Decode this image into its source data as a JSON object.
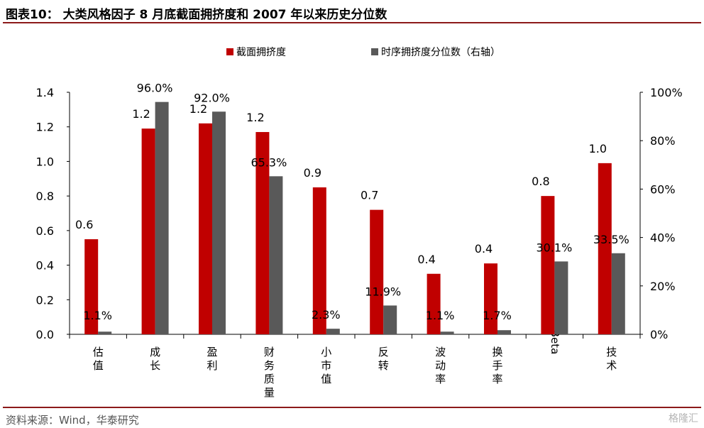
{
  "header": {
    "title": "图表10： 大类风格因子 8 月底截面拥挤度和 2007 年以来历史分位数"
  },
  "footer": {
    "source": "资料来源：Wind，华泰研究",
    "watermark": "格隆汇"
  },
  "colors": {
    "crowding": "#c00000",
    "percentile": "#595959",
    "rule": "#8c1a1a"
  },
  "chart_data": {
    "type": "bar",
    "categories": [
      "估值",
      "成长",
      "盈利",
      "财务质量",
      "小市值",
      "反转",
      "波动率",
      "换手率",
      "Beta",
      "技术"
    ],
    "series": [
      {
        "name": "截面拥挤度",
        "axis": "left",
        "values": [
          0.55,
          1.19,
          1.22,
          1.17,
          0.85,
          0.72,
          0.35,
          0.41,
          0.8,
          0.99
        ],
        "labels": [
          "0.6",
          "1.2",
          "1.2",
          "1.2",
          "0.9",
          "0.7",
          "0.4",
          "0.4",
          "0.8",
          "1.0"
        ]
      },
      {
        "name": "时序拥挤度分位数（右轴）",
        "axis": "right",
        "values": [
          1.1,
          96.0,
          92.0,
          65.3,
          2.3,
          11.9,
          1.1,
          1.7,
          30.1,
          33.5
        ],
        "labels": [
          "1.1%",
          "96.0%",
          "92.0%",
          "65.3%",
          "2.3%",
          "11.9%",
          "1.1%",
          "1.7%",
          "30.1%",
          "33.5%"
        ]
      }
    ],
    "y_left": {
      "lim": [
        0,
        1.4
      ],
      "ticks": [
        "0.0",
        "0.2",
        "0.4",
        "0.6",
        "0.8",
        "1.0",
        "1.2",
        "1.4"
      ]
    },
    "y_right": {
      "lim": [
        0,
        100
      ],
      "ticks": [
        "0%",
        "20%",
        "40%",
        "60%",
        "80%",
        "100%"
      ]
    },
    "legend": "top",
    "grid": false
  }
}
